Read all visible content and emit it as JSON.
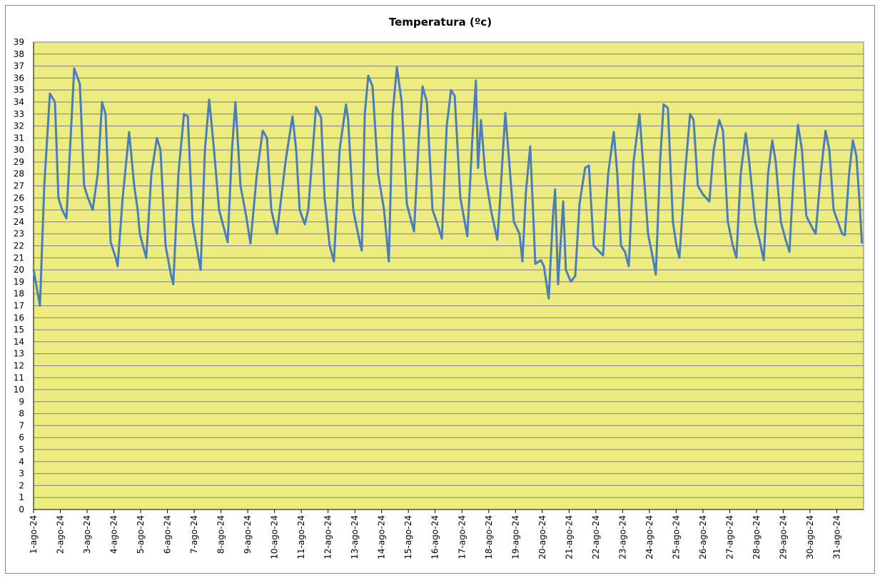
{
  "chart_data": {
    "type": "line",
    "title": "Temperatura (ºc)",
    "color": "#4a7ebb",
    "grid": true,
    "xlim": [
      0,
      31
    ],
    "ylim": [
      0,
      39
    ],
    "yticks": [
      0,
      1,
      2,
      3,
      4,
      5,
      6,
      7,
      8,
      9,
      10,
      11,
      12,
      13,
      14,
      15,
      16,
      17,
      18,
      19,
      20,
      21,
      22,
      23,
      24,
      25,
      26,
      27,
      28,
      29,
      30,
      31,
      32,
      33,
      34,
      35,
      36,
      37,
      38,
      39
    ],
    "xticks": [
      {
        "value": 0,
        "label": "1-ago-24"
      },
      {
        "value": 1,
        "label": "2-ago-24"
      },
      {
        "value": 2,
        "label": "3-ago-24"
      },
      {
        "value": 3,
        "label": "4-ago-24"
      },
      {
        "value": 4,
        "label": "5-ago-24"
      },
      {
        "value": 5,
        "label": "6-ago-24"
      },
      {
        "value": 6,
        "label": "7-ago-24"
      },
      {
        "value": 7,
        "label": "8-ago-24"
      },
      {
        "value": 8,
        "label": "9-ago-24"
      },
      {
        "value": 9,
        "label": "10-ago-24"
      },
      {
        "value": 10,
        "label": "11-ago-24"
      },
      {
        "value": 11,
        "label": "12-ago-24"
      },
      {
        "value": 12,
        "label": "13-ago-24"
      },
      {
        "value": 13,
        "label": "14-ago-24"
      },
      {
        "value": 14,
        "label": "15-ago-24"
      },
      {
        "value": 15,
        "label": "16-ago-24"
      },
      {
        "value": 16,
        "label": "17-ago-24"
      },
      {
        "value": 17,
        "label": "18-ago-24"
      },
      {
        "value": 18,
        "label": "19-ago-24"
      },
      {
        "value": 19,
        "label": "20-ago-24"
      },
      {
        "value": 20,
        "label": "21-ago-24"
      },
      {
        "value": 21,
        "label": "22-ago-24"
      },
      {
        "value": 22,
        "label": "23-ago-24"
      },
      {
        "value": 23,
        "label": "24-ago-24"
      },
      {
        "value": 24,
        "label": "25-ago-24"
      },
      {
        "value": 25,
        "label": "26-ago-24"
      },
      {
        "value": 26,
        "label": "27-ago-24"
      },
      {
        "value": 27,
        "label": "28-ago-24"
      },
      {
        "value": 28,
        "label": "29-ago-24"
      },
      {
        "value": 29,
        "label": "30-ago-24"
      },
      {
        "value": 30,
        "label": "31-ago-24"
      }
    ],
    "x": [
      0,
      0.24,
      0.4,
      0.61,
      0.8,
      0.93,
      1.07,
      1.23,
      1.52,
      1.73,
      1.89,
      2.03,
      2.21,
      2.4,
      2.56,
      2.69,
      2.88,
      3.07,
      3.14,
      3.33,
      3.57,
      3.76,
      3.89,
      3.97,
      4.21,
      4.4,
      4.61,
      4.74,
      4.93,
      5.14,
      5.22,
      5.41,
      5.62,
      5.76,
      5.94,
      6.16,
      6.24,
      6.4,
      6.56,
      6.74,
      6.93,
      7.25,
      7.41,
      7.54,
      7.73,
      7.94,
      8.1,
      8.34,
      8.56,
      8.72,
      8.88,
      9.09,
      9.41,
      9.67,
      9.81,
      9.94,
      10.13,
      10.26,
      10.55,
      10.74,
      10.87,
      11.06,
      11.22,
      11.43,
      11.67,
      11.75,
      11.94,
      12.21,
      12.26,
      12.37,
      12.5,
      12.66,
      12.87,
      13.09,
      13.27,
      13.41,
      13.57,
      13.75,
      13.94,
      14.21,
      14.39,
      14.53,
      14.69,
      14.9,
      15.06,
      15.25,
      15.43,
      15.59,
      15.73,
      15.94,
      16.2,
      16.39,
      16.52,
      16.6,
      16.71,
      16.87,
      17.08,
      17.32,
      17.4,
      17.62,
      17.8,
      17.94,
      18.15,
      18.26,
      18.39,
      18.55,
      18.74,
      18.95,
      19.06,
      19.24,
      19.4,
      19.48,
      19.59,
      19.78,
      19.88,
      20.07,
      20.23,
      20.39,
      20.6,
      20.74,
      20.92,
      21.14,
      21.27,
      21.46,
      21.67,
      21.8,
      21.94,
      22.09,
      22.23,
      22.41,
      22.63,
      22.73,
      22.95,
      23.13,
      23.24,
      23.4,
      23.53,
      23.69,
      23.88,
      24.01,
      24.12,
      24.33,
      24.52,
      24.65,
      24.81,
      25.0,
      25.24,
      25.4,
      25.61,
      25.75,
      25.93,
      26.12,
      26.25,
      26.41,
      26.6,
      26.73,
      26.95,
      27.11,
      27.27,
      27.43,
      27.59,
      27.72,
      27.91,
      28.09,
      28.23,
      28.39,
      28.55,
      28.7,
      28.86,
      29.08,
      29.21,
      29.4,
      29.58,
      29.72,
      29.88,
      30.2,
      30.3,
      30.46,
      30.6,
      30.73,
      30.84,
      30.94
    ],
    "values": [
      20,
      17,
      27,
      34.7,
      34,
      26,
      25,
      24.3,
      36.8,
      35.5,
      27,
      26,
      25,
      28,
      34,
      33,
      22.3,
      21,
      20.3,
      26,
      31.5,
      27,
      25,
      23,
      21,
      28,
      31,
      30,
      22,
      19.5,
      18.8,
      28,
      33,
      32.8,
      24,
      21,
      20,
      30,
      34.2,
      30,
      25,
      22.3,
      30,
      34,
      27,
      24.5,
      22.2,
      28,
      31.6,
      31,
      25,
      23,
      29,
      32.8,
      30,
      25,
      23.8,
      25,
      33.6,
      32.7,
      26,
      22,
      20.7,
      30,
      33.8,
      32.5,
      25,
      22,
      21.6,
      33,
      36.2,
      35.3,
      28,
      25,
      20.7,
      33,
      36.9,
      34,
      25.5,
      23.2,
      31,
      35.3,
      34,
      25,
      24,
      22.6,
      32,
      35,
      34.5,
      26,
      22.8,
      31,
      35.8,
      28.5,
      32.5,
      28,
      25,
      22.5,
      25,
      33.1,
      28,
      24,
      23,
      20.7,
      26.5,
      30.3,
      20.5,
      20.8,
      20.3,
      17.6,
      24.5,
      26.7,
      18.8,
      25.7,
      20,
      19,
      19.5,
      25.5,
      28.5,
      28.7,
      22,
      21.5,
      21.2,
      28,
      31.5,
      28,
      22,
      21.5,
      20.3,
      29,
      33,
      30,
      23,
      21,
      19.6,
      29,
      33.8,
      33.5,
      24,
      22,
      21,
      28,
      33,
      32.5,
      27,
      26.3,
      25.7,
      30,
      32.5,
      31.6,
      24,
      22,
      21,
      28,
      31.4,
      29,
      24,
      22.5,
      20.8,
      28,
      30.8,
      29,
      24,
      22.5,
      21.5,
      28,
      32.1,
      30,
      24.5,
      23.5,
      23,
      28,
      31.6,
      30,
      25,
      23,
      22.9,
      28,
      30.8,
      29.5,
      26,
      22.2
    ]
  }
}
